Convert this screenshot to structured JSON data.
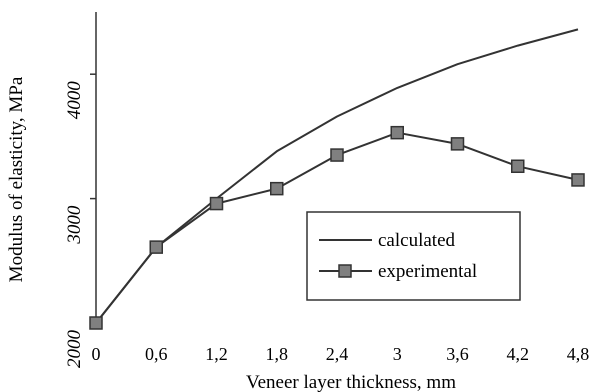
{
  "chart_data": {
    "type": "line",
    "title": "",
    "xlabel": "Veneer layer thickness, mm",
    "ylabel": "Modulus of elasticity, MPa",
    "x_tick_labels": [
      "0",
      "0,6",
      "1,2",
      "1,8",
      "2,4",
      "3",
      "3,6",
      "4,2",
      "4,8"
    ],
    "y_tick_labels": [
      "2000",
      "3000",
      "4000"
    ],
    "x": [
      0,
      0.6,
      1.2,
      1.8,
      2.4,
      3.0,
      3.6,
      4.2,
      4.8
    ],
    "xlim": [
      0,
      4.8
    ],
    "ylim": [
      2000,
      4500
    ],
    "y_ticks": [
      2000,
      3000,
      4000
    ],
    "grid": false,
    "legend_position": "right",
    "series": [
      {
        "name": "calculated",
        "color": "#333333",
        "marker": "none",
        "values": [
          2000,
          2610,
          3000,
          3380,
          3660,
          3890,
          4080,
          4230,
          4360
        ]
      },
      {
        "name": "experimental",
        "color": "#333333",
        "marker": "square",
        "marker_fill": "#808080",
        "values": [
          2000,
          2610,
          2960,
          3080,
          3350,
          3530,
          3440,
          3260,
          3150
        ]
      }
    ]
  }
}
